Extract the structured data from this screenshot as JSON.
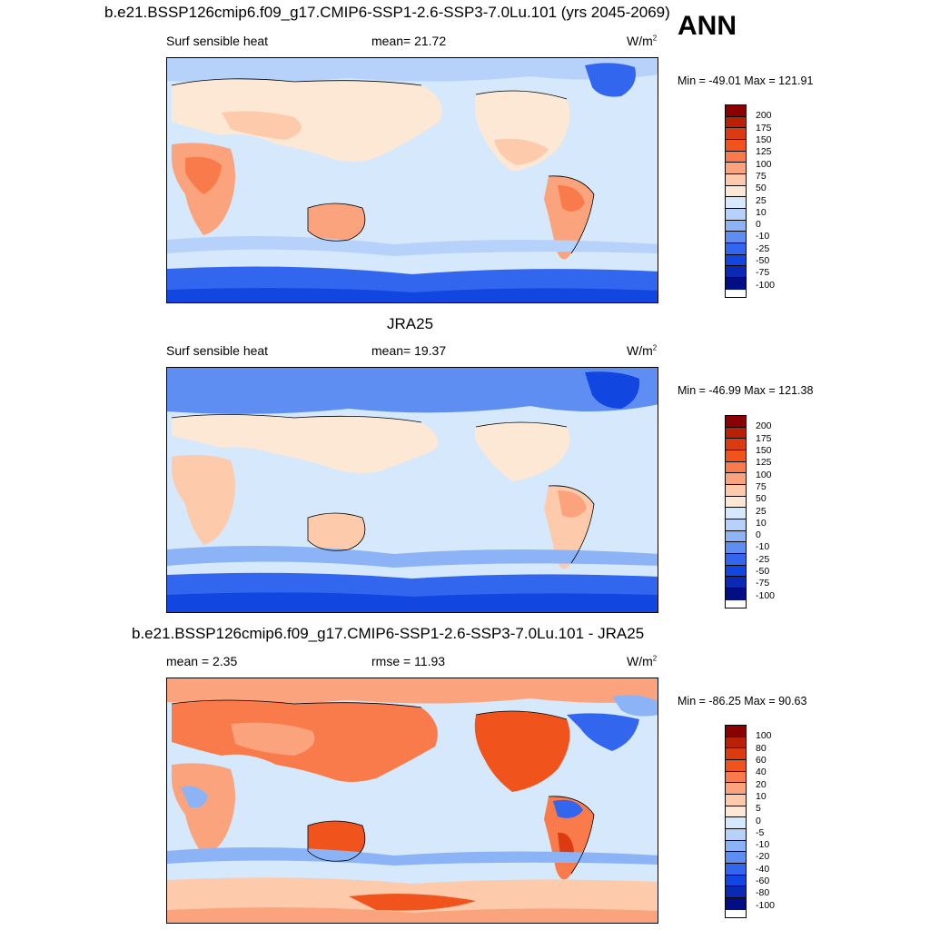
{
  "ann_label": "ANN",
  "panels": [
    {
      "title": "b.e21.BSSP126cmip6.f09_g17.CMIP6-SSP1-2.6-SSP3-7.0Lu.101 (yrs 2045-2069)",
      "left_label": "Surf sensible heat",
      "center_label": "mean=  21.72",
      "units": "W/m",
      "units_sup": "2",
      "minmax": "Min = -49.01 Max = 121.91",
      "colorbar_ticks": [
        "200",
        "175",
        "150",
        "125",
        "100",
        "75",
        "50",
        "25",
        "10",
        "0",
        "-10",
        "-25",
        "-50",
        "-75",
        "-100"
      ],
      "colors": [
        "#8b0000",
        "#b82008",
        "#dc3a10",
        "#f0541c",
        "#f97a4a",
        "#fba37c",
        "#fdcbac",
        "#fde8d6",
        "#d6e8fb",
        "#b6d2fa",
        "#8bb3f6",
        "#5e8ef2",
        "#3266ee",
        "#1146e0",
        "#0a2ab6",
        "#030e84"
      ]
    },
    {
      "title": "JRA25",
      "left_label": "Surf sensible heat",
      "center_label": "mean=  19.37",
      "units": "W/m",
      "units_sup": "2",
      "minmax": "Min = -46.99 Max = 121.38",
      "colorbar_ticks": [
        "200",
        "175",
        "150",
        "125",
        "100",
        "75",
        "50",
        "25",
        "10",
        "0",
        "-10",
        "-25",
        "-50",
        "-75",
        "-100"
      ],
      "colors": [
        "#8b0000",
        "#b82008",
        "#dc3a10",
        "#f0541c",
        "#f97a4a",
        "#fba37c",
        "#fdcbac",
        "#fde8d6",
        "#d6e8fb",
        "#b6d2fa",
        "#8bb3f6",
        "#5e8ef2",
        "#3266ee",
        "#1146e0",
        "#0a2ab6",
        "#030e84"
      ]
    },
    {
      "title": "b.e21.BSSP126cmip6.f09_g17.CMIP6-SSP1-2.6-SSP3-7.0Lu.101 - JRA25",
      "left_label": "mean =   2.35",
      "center_label": "rmse =  11.93",
      "units": "W/m",
      "units_sup": "2",
      "minmax": "Min = -86.25 Max =  90.63",
      "colorbar_ticks": [
        "100",
        "80",
        "60",
        "40",
        "20",
        "10",
        "5",
        "0",
        "-5",
        "-10",
        "-20",
        "-40",
        "-60",
        "-80",
        "-100"
      ],
      "colors": [
        "#8b0000",
        "#b82008",
        "#dc3a10",
        "#f0541c",
        "#f97a4a",
        "#fba37c",
        "#fdcbac",
        "#fde8d6",
        "#d6e8fb",
        "#b6d2fa",
        "#8bb3f6",
        "#5e8ef2",
        "#3266ee",
        "#1146e0",
        "#0a2ab6",
        "#030e84"
      ]
    }
  ]
}
